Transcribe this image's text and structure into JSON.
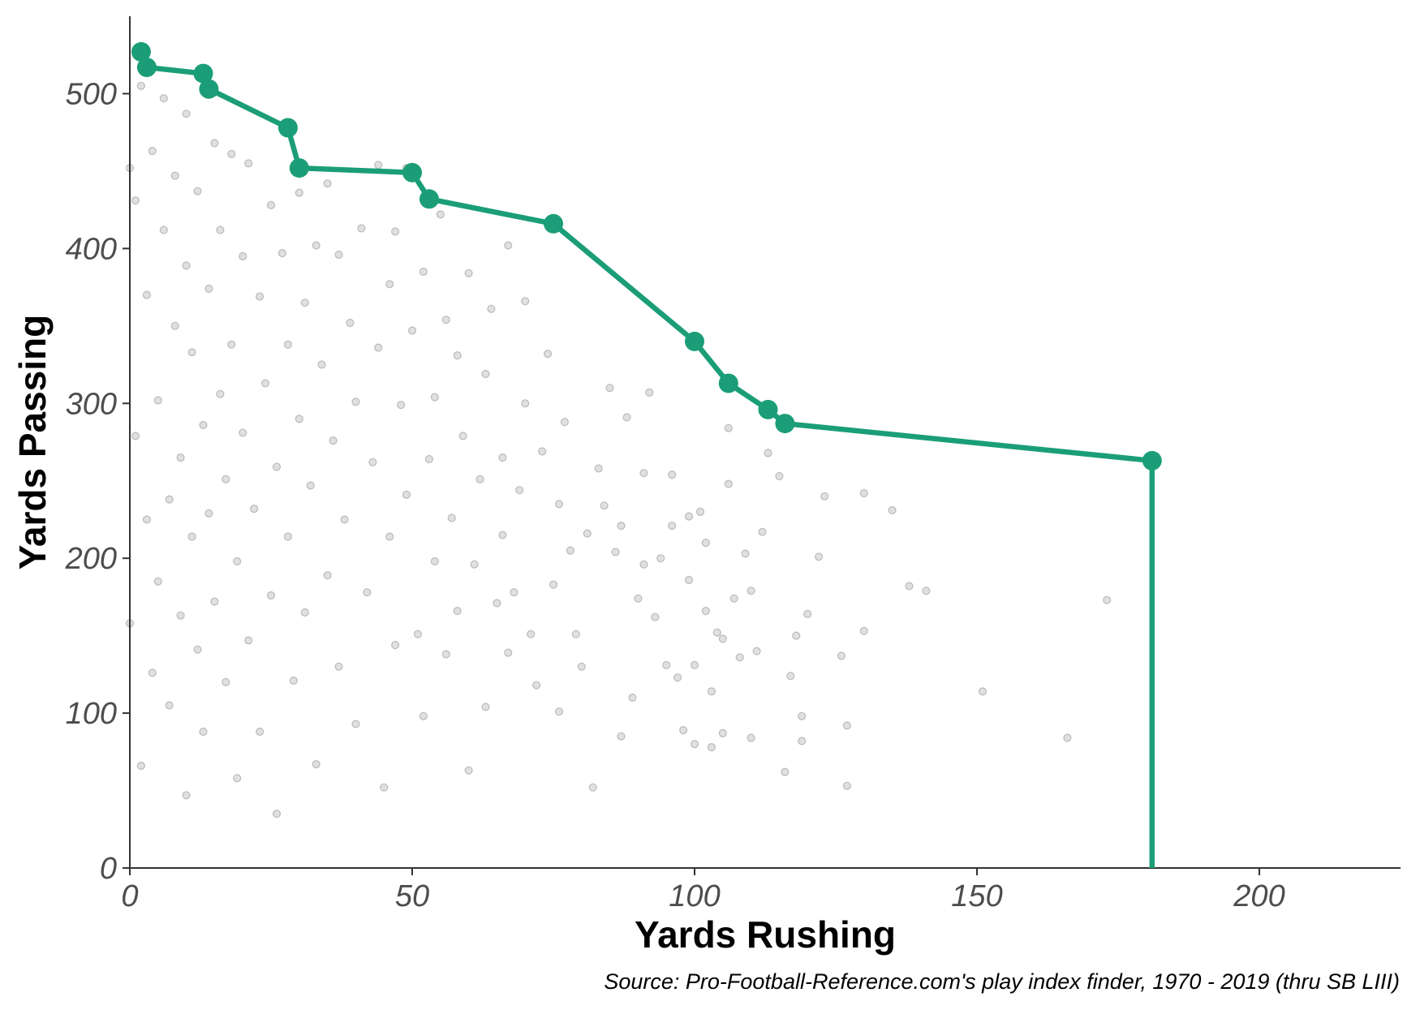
{
  "chart_data": {
    "type": "scatter",
    "title": "",
    "xlabel": "Yards Rushing",
    "ylabel": "Yards Passing",
    "caption": "Source: Pro-Football-Reference.com's play index finder, 1970 - 2019 (thru SB LIII)",
    "xlim": [
      0,
      225
    ],
    "ylim": [
      0,
      550
    ],
    "x_ticks": [
      0,
      50,
      100,
      150,
      200
    ],
    "y_ticks": [
      0,
      100,
      200,
      300,
      400,
      500
    ],
    "x_tick_labels": [
      "0",
      "50",
      "100",
      "150",
      "200"
    ],
    "y_tick_labels": [
      "0",
      "100",
      "200",
      "300",
      "400",
      "500"
    ],
    "grid": false,
    "legend": "none",
    "colors": {
      "frontier": "#1b9e77",
      "points": "#000000",
      "axis": "#333333"
    },
    "frontier": {
      "x": [
        2,
        3,
        13,
        14,
        28,
        30,
        50,
        53,
        75,
        100,
        106,
        113,
        116,
        181,
        181
      ],
      "y": [
        527,
        517,
        513,
        503,
        478,
        452,
        449,
        432,
        416,
        340,
        313,
        296,
        287,
        263,
        0
      ]
    },
    "scatter_sampled": true,
    "scatter": [
      [
        173,
        173
      ],
      [
        166,
        84
      ],
      [
        151,
        114
      ],
      [
        141,
        179
      ],
      [
        138,
        182
      ],
      [
        135,
        231
      ],
      [
        130,
        242
      ],
      [
        130,
        153
      ],
      [
        127,
        92
      ],
      [
        127,
        53
      ],
      [
        126,
        137
      ],
      [
        123,
        240
      ],
      [
        122,
        201
      ],
      [
        120,
        164
      ],
      [
        119,
        82
      ],
      [
        119,
        98
      ],
      [
        118,
        150
      ],
      [
        117,
        124
      ],
      [
        116,
        62
      ],
      [
        115,
        253
      ],
      [
        113,
        268
      ],
      [
        112,
        217
      ],
      [
        110,
        84
      ],
      [
        111,
        140
      ],
      [
        110,
        179
      ],
      [
        109,
        203
      ],
      [
        108,
        136
      ],
      [
        107,
        174
      ],
      [
        106,
        284
      ],
      [
        106,
        248
      ],
      [
        105,
        148
      ],
      [
        105,
        87
      ],
      [
        104,
        152
      ],
      [
        103,
        114
      ],
      [
        103,
        78
      ],
      [
        102,
        210
      ],
      [
        102,
        166
      ],
      [
        101,
        230
      ],
      [
        100,
        131
      ],
      [
        100,
        80
      ],
      [
        99,
        227
      ],
      [
        99,
        186
      ],
      [
        98,
        89
      ],
      [
        97,
        123
      ],
      [
        96,
        254
      ],
      [
        96,
        221
      ],
      [
        95,
        131
      ],
      [
        94,
        200
      ],
      [
        93,
        162
      ],
      [
        92,
        307
      ],
      [
        91,
        255
      ],
      [
        91,
        196
      ],
      [
        90,
        174
      ],
      [
        89,
        110
      ],
      [
        88,
        291
      ],
      [
        87,
        221
      ],
      [
        87,
        85
      ],
      [
        86,
        204
      ],
      [
        85,
        310
      ],
      [
        84,
        234
      ],
      [
        83,
        258
      ],
      [
        82,
        52
      ],
      [
        81,
        216
      ],
      [
        80,
        130
      ],
      [
        79,
        151
      ],
      [
        78,
        205
      ],
      [
        77,
        288
      ],
      [
        76,
        235
      ],
      [
        76,
        101
      ],
      [
        75,
        183
      ],
      [
        74,
        332
      ],
      [
        73,
        269
      ],
      [
        72,
        118
      ],
      [
        71,
        151
      ],
      [
        70,
        366
      ],
      [
        70,
        300
      ],
      [
        69,
        244
      ],
      [
        68,
        178
      ],
      [
        67,
        402
      ],
      [
        67,
        139
      ],
      [
        66,
        265
      ],
      [
        66,
        215
      ],
      [
        65,
        171
      ],
      [
        64,
        361
      ],
      [
        63,
        319
      ],
      [
        63,
        104
      ],
      [
        62,
        251
      ],
      [
        61,
        196
      ],
      [
        60,
        384
      ],
      [
        60,
        63
      ],
      [
        59,
        279
      ],
      [
        58,
        331
      ],
      [
        58,
        166
      ],
      [
        57,
        226
      ],
      [
        56,
        354
      ],
      [
        56,
        138
      ],
      [
        55,
        422
      ],
      [
        54,
        304
      ],
      [
        54,
        198
      ],
      [
        53,
        264
      ],
      [
        52,
        385
      ],
      [
        52,
        98
      ],
      [
        51,
        151
      ],
      [
        50,
        347
      ],
      [
        49,
        452
      ],
      [
        49,
        241
      ],
      [
        48,
        299
      ],
      [
        47,
        411
      ],
      [
        47,
        144
      ],
      [
        46,
        377
      ],
      [
        46,
        214
      ],
      [
        45,
        52
      ],
      [
        44,
        454
      ],
      [
        44,
        336
      ],
      [
        43,
        262
      ],
      [
        42,
        178
      ],
      [
        41,
        413
      ],
      [
        40,
        301
      ],
      [
        40,
        93
      ],
      [
        39,
        352
      ],
      [
        38,
        225
      ],
      [
        37,
        396
      ],
      [
        37,
        130
      ],
      [
        36,
        276
      ],
      [
        35,
        442
      ],
      [
        35,
        189
      ],
      [
        34,
        325
      ],
      [
        33,
        67
      ],
      [
        33,
        402
      ],
      [
        32,
        247
      ],
      [
        31,
        165
      ],
      [
        31,
        365
      ],
      [
        30,
        436
      ],
      [
        30,
        290
      ],
      [
        29,
        121
      ],
      [
        28,
        214
      ],
      [
        28,
        338
      ],
      [
        27,
        397
      ],
      [
        26,
        259
      ],
      [
        26,
        35
      ],
      [
        25,
        176
      ],
      [
        25,
        428
      ],
      [
        24,
        313
      ],
      [
        23,
        369
      ],
      [
        23,
        88
      ],
      [
        22,
        232
      ],
      [
        21,
        455
      ],
      [
        21,
        147
      ],
      [
        20,
        281
      ],
      [
        20,
        395
      ],
      [
        19,
        198
      ],
      [
        19,
        58
      ],
      [
        18,
        338
      ],
      [
        18,
        461
      ],
      [
        17,
        251
      ],
      [
        17,
        120
      ],
      [
        16,
        412
      ],
      [
        16,
        306
      ],
      [
        15,
        172
      ],
      [
        15,
        468
      ],
      [
        14,
        229
      ],
      [
        14,
        374
      ],
      [
        13,
        88
      ],
      [
        13,
        286
      ],
      [
        12,
        437
      ],
      [
        12,
        141
      ],
      [
        11,
        333
      ],
      [
        11,
        214
      ],
      [
        10,
        487
      ],
      [
        10,
        389
      ],
      [
        10,
        47
      ],
      [
        9,
        265
      ],
      [
        9,
        163
      ],
      [
        8,
        447
      ],
      [
        8,
        350
      ],
      [
        7,
        105
      ],
      [
        7,
        238
      ],
      [
        6,
        497
      ],
      [
        6,
        412
      ],
      [
        5,
        185
      ],
      [
        5,
        302
      ],
      [
        4,
        463
      ],
      [
        4,
        126
      ],
      [
        3,
        370
      ],
      [
        3,
        225
      ],
      [
        2,
        505
      ],
      [
        2,
        66
      ],
      [
        1,
        431
      ],
      [
        1,
        279
      ],
      [
        0,
        452
      ],
      [
        0,
        158
      ]
    ]
  }
}
